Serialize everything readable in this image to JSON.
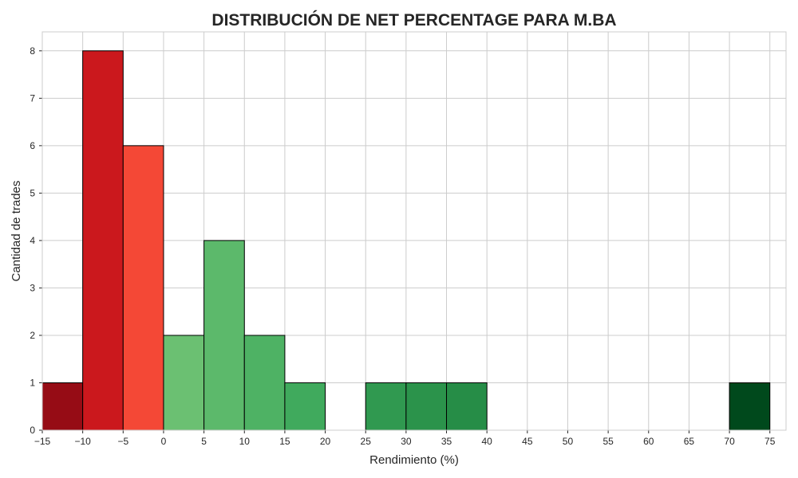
{
  "chart_data": {
    "type": "bar",
    "title": "DISTRIBUCIÓN DE NET PERCENTAGE PARA M.BA",
    "xlabel": "Rendimiento (%)",
    "ylabel": "Cantidad de trades",
    "xlim": [
      -15,
      77
    ],
    "ylim": [
      0,
      8.4
    ],
    "grid": true,
    "x_ticks": [
      "−15",
      "−10",
      "−5",
      "0",
      "5",
      "10",
      "15",
      "20",
      "25",
      "30",
      "35",
      "40",
      "45",
      "50",
      "55",
      "60",
      "65",
      "70",
      "75"
    ],
    "y_ticks": [
      "0",
      "1",
      "2",
      "3",
      "4",
      "5",
      "6",
      "7",
      "8"
    ],
    "bins": [
      {
        "start": -15,
        "end": -10,
        "value": 1,
        "color": "#960c15"
      },
      {
        "start": -10,
        "end": -5,
        "value": 8,
        "color": "#cb181d"
      },
      {
        "start": -5,
        "end": 0,
        "value": 6,
        "color": "#f44836"
      },
      {
        "start": 0,
        "end": 5,
        "value": 2,
        "color": "#6bc072"
      },
      {
        "start": 5,
        "end": 10,
        "value": 4,
        "color": "#5cb96b"
      },
      {
        "start": 10,
        "end": 15,
        "value": 2,
        "color": "#4eb264"
      },
      {
        "start": 15,
        "end": 20,
        "value": 1,
        "color": "#40aa5d"
      },
      {
        "start": 25,
        "end": 30,
        "value": 1,
        "color": "#309950"
      },
      {
        "start": 30,
        "end": 35,
        "value": 1,
        "color": "#2b934b"
      },
      {
        "start": 35,
        "end": 40,
        "value": 1,
        "color": "#268d47"
      },
      {
        "start": 70,
        "end": 75,
        "value": 1,
        "color": "#00491c"
      }
    ],
    "edge_color": "#000000",
    "grid_color": "#cccccc"
  }
}
